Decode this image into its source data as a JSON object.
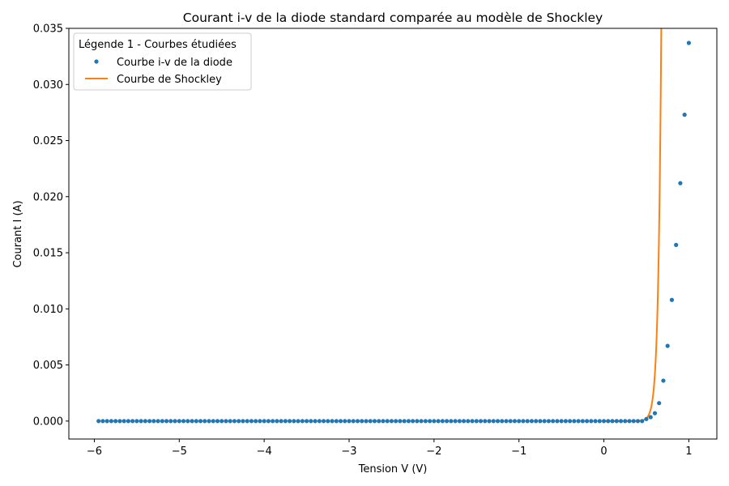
{
  "chart_data": {
    "type": "scatter",
    "title": "Courant i-v de la diode standard comparée au modèle de Shockley",
    "xlabel": "Tension V (V)",
    "ylabel": "Courant I (A)",
    "xlim": [
      -6.3,
      1.33
    ],
    "ylim": [
      -0.0016,
      0.035
    ],
    "xticks": [
      -6,
      -5,
      -4,
      -3,
      -2,
      -1,
      0,
      1
    ],
    "xtick_labels": [
      "−6",
      "−5",
      "−4",
      "−3",
      "−2",
      "−1",
      "0",
      "1"
    ],
    "yticks": [
      0,
      0.005,
      0.01,
      0.015,
      0.02,
      0.025,
      0.03,
      0.035
    ],
    "ytick_labels": [
      "0.000",
      "0.005",
      "0.010",
      "0.015",
      "0.020",
      "0.025",
      "0.030",
      "0.035"
    ],
    "grid": false,
    "legend": {
      "title": "Légende 1 - Courbes étudiées",
      "placement": "top-left"
    },
    "series": [
      {
        "name": "Courbe i-v de la diode",
        "kind": "points",
        "color": "#1f77b4",
        "x_start": -5.95,
        "x_end": 0.45,
        "x_step": 0.05,
        "base_y": 0.0,
        "points": [
          [
            0.5,
            0.00018
          ],
          [
            0.55,
            0.00035
          ],
          [
            0.6,
            0.0007
          ],
          [
            0.65,
            0.0016
          ],
          [
            0.7,
            0.0036
          ],
          [
            0.75,
            0.0067
          ],
          [
            0.8,
            0.0108
          ],
          [
            0.85,
            0.0157
          ],
          [
            0.9,
            0.0212
          ],
          [
            0.95,
            0.0273
          ],
          [
            1.0,
            0.0337
          ]
        ]
      },
      {
        "name": "Courbe de Shockley",
        "kind": "line",
        "color": "#ff7f0e",
        "x_start": 0.0,
        "x_end": 0.82,
        "x_step": 0.005,
        "model": "exponential",
        "i_s": 1.9e-10,
        "n_vt": 0.0355
      }
    ]
  }
}
